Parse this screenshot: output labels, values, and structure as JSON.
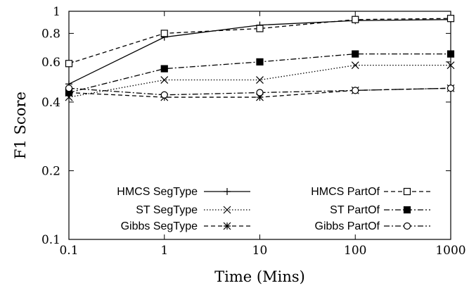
{
  "chart_data": {
    "type": "line",
    "title": "",
    "xlabel": "Time (Mins)",
    "ylabel": "F1 Score",
    "xscale": "log",
    "yscale": "log",
    "xlim": [
      0.1,
      1000
    ],
    "ylim": [
      0.1,
      1
    ],
    "x_ticks": [
      0.1,
      1,
      10,
      100,
      1000
    ],
    "x_tick_labels": [
      "0.1",
      "1",
      "10",
      "100",
      "1000"
    ],
    "y_ticks": [
      0.1,
      0.2,
      0.4,
      0.6,
      0.8,
      1
    ],
    "y_tick_labels": [
      "0.1",
      "0.2",
      "0.4",
      "0.6",
      "0.8",
      "1"
    ],
    "grid": false,
    "legend_position": "bottom-inside",
    "x": [
      0.1,
      1,
      10,
      100,
      1000
    ],
    "series": [
      {
        "name": "HMCS SegType",
        "values": [
          0.48,
          0.77,
          0.87,
          0.91,
          0.92
        ],
        "line": "solid",
        "marker": "plus",
        "color": "#000000"
      },
      {
        "name": "ST SegType",
        "values": [
          0.42,
          0.5,
          0.5,
          0.58,
          0.58
        ],
        "line": "dotted",
        "marker": "cross",
        "color": "#000000"
      },
      {
        "name": "Gibbs SegType",
        "values": [
          0.44,
          0.42,
          0.42,
          0.45,
          0.46
        ],
        "line": "dashed",
        "marker": "star",
        "color": "#000000"
      },
      {
        "name": "HMCS PartOf",
        "values": [
          0.59,
          0.8,
          0.84,
          0.92,
          0.93
        ],
        "line": "dashed",
        "marker": "open-square",
        "color": "#000000"
      },
      {
        "name": "ST PartOf",
        "values": [
          0.44,
          0.56,
          0.6,
          0.65,
          0.65
        ],
        "line": "dashdot",
        "marker": "filled-square",
        "color": "#000000"
      },
      {
        "name": "Gibbs PartOf",
        "values": [
          0.46,
          0.43,
          0.44,
          0.45,
          0.46
        ],
        "line": "dashdot",
        "marker": "open-circle",
        "color": "#000000"
      }
    ]
  }
}
